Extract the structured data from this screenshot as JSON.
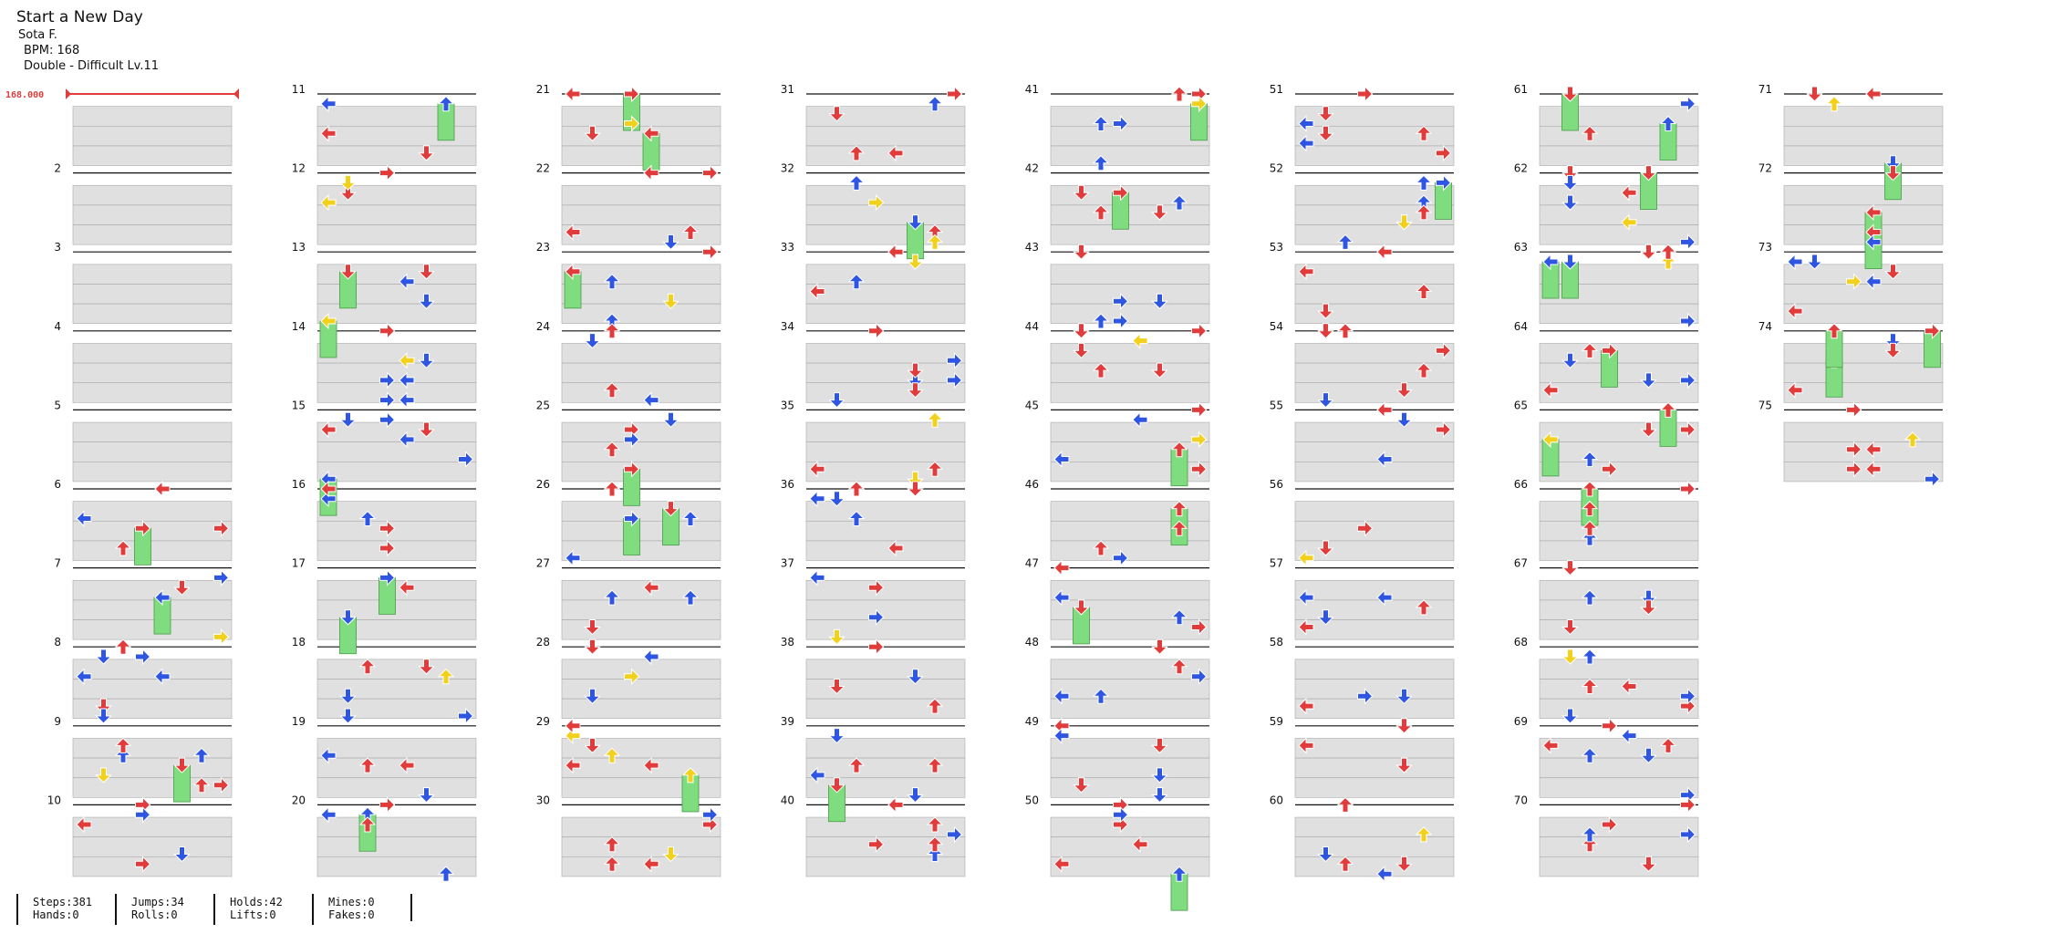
{
  "song": {
    "title": "Start a New Day",
    "artist": "Sota F.",
    "bpm_label": "BPM: 168",
    "difficulty_label": "Double - Difficult  Lv.11"
  },
  "bpm_marker": "168.000",
  "measures_per_column": 10,
  "measure_count": 75,
  "measure_labels": [
    "",
    "2",
    "3",
    "4",
    "5",
    "6",
    "7",
    "8",
    "9",
    "10",
    "11",
    "12",
    "13",
    "14",
    "15",
    "16",
    "17",
    "18",
    "19",
    "20",
    "21",
    "22",
    "23",
    "24",
    "25",
    "26",
    "27",
    "28",
    "29",
    "30",
    "31",
    "32",
    "33",
    "34",
    "35",
    "36",
    "37",
    "38",
    "39",
    "40",
    "41",
    "42",
    "43",
    "44",
    "45",
    "46",
    "47",
    "48",
    "49",
    "50",
    "51",
    "52",
    "53",
    "54",
    "55",
    "56",
    "57",
    "58",
    "59",
    "60",
    "61",
    "62",
    "63",
    "64",
    "65",
    "66",
    "67",
    "68",
    "69",
    "70",
    "71",
    "72",
    "73",
    "74",
    "75"
  ],
  "colors": {
    "quarter": "#e23b3b",
    "eighth": "#2f56e3",
    "sixteenth": "#f2d11c",
    "hold_body": "#7fdc7f",
    "band": "#e0e0e0"
  },
  "stats": [
    {
      "line1": "Steps:381",
      "line2": "Hands:0"
    },
    {
      "line1": "Jumps:34",
      "line2": "Rolls:0"
    },
    {
      "line1": "Holds:42",
      "line2": "Lifts:0"
    },
    {
      "line1": "Mines:0",
      "line2": "Fakes:0"
    }
  ]
}
